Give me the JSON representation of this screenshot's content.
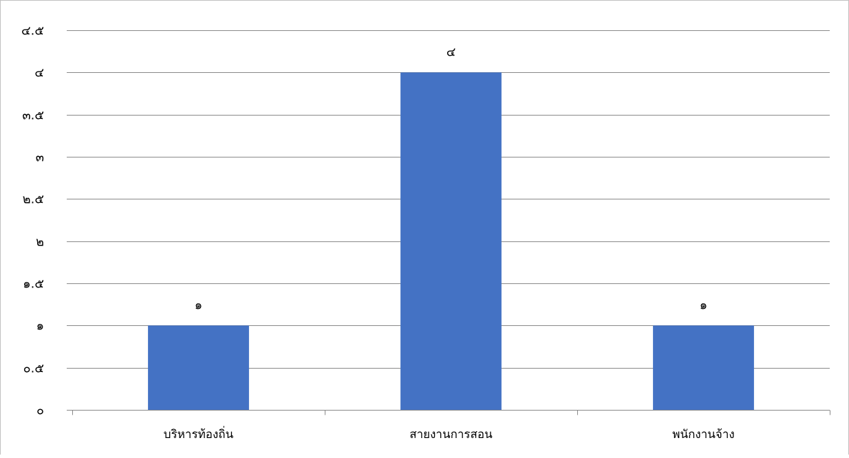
{
  "chart_data": {
    "type": "bar",
    "categories": [
      "บริหารท้องถิ่น",
      "สายงานการสอน",
      "พนักงานจ้าง"
    ],
    "values": [
      1,
      4,
      1
    ],
    "value_labels": [
      "๑",
      "๔",
      "๑"
    ],
    "ylim": [
      0,
      4.5
    ],
    "yticks": [
      0,
      0.5,
      1,
      1.5,
      2,
      2.5,
      3,
      3.5,
      4,
      4.5
    ],
    "ytick_labels": [
      "๐",
      "๐.๕",
      "๑",
      "๑.๕",
      "๒",
      "๒.๕",
      "๓",
      "๓.๕",
      "๔",
      "๔.๕"
    ],
    "grid": true,
    "legend": "none",
    "title": "",
    "xlabel": "",
    "ylabel": "",
    "bar_color": "#4472C4",
    "gridline_color": "#888888"
  }
}
